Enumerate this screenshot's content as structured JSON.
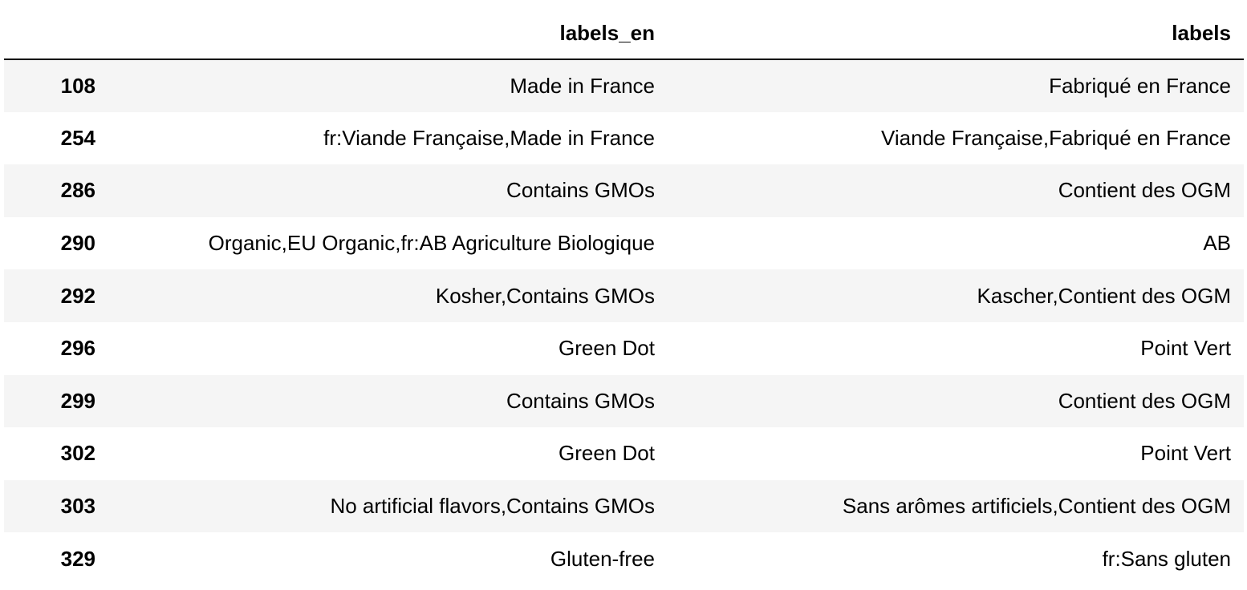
{
  "table": {
    "columns": [
      "",
      "labels_en",
      "labels"
    ],
    "rows": [
      {
        "index": "108",
        "labels_en": "Made in France",
        "labels": "Fabriqué en France"
      },
      {
        "index": "254",
        "labels_en": "fr:Viande Française,Made in France",
        "labels": "Viande Française,Fabriqué en France"
      },
      {
        "index": "286",
        "labels_en": "Contains GMOs",
        "labels": "Contient des OGM"
      },
      {
        "index": "290",
        "labels_en": "Organic,EU Organic,fr:AB Agriculture Biologique",
        "labels": "AB"
      },
      {
        "index": "292",
        "labels_en": "Kosher,Contains GMOs",
        "labels": "Kascher,Contient des OGM"
      },
      {
        "index": "296",
        "labels_en": "Green Dot",
        "labels": "Point Vert"
      },
      {
        "index": "299",
        "labels_en": "Contains GMOs",
        "labels": "Contient des OGM"
      },
      {
        "index": "302",
        "labels_en": "Green Dot",
        "labels": "Point Vert"
      },
      {
        "index": "303",
        "labels_en": "No artificial flavors,Contains GMOs",
        "labels": "Sans arômes artificiels,Contient des OGM"
      },
      {
        "index": "329",
        "labels_en": "Gluten-free",
        "labels": "fr:Sans gluten"
      }
    ]
  },
  "colors": {
    "stripe": "#f5f5f5",
    "header_rule": "#000000"
  }
}
